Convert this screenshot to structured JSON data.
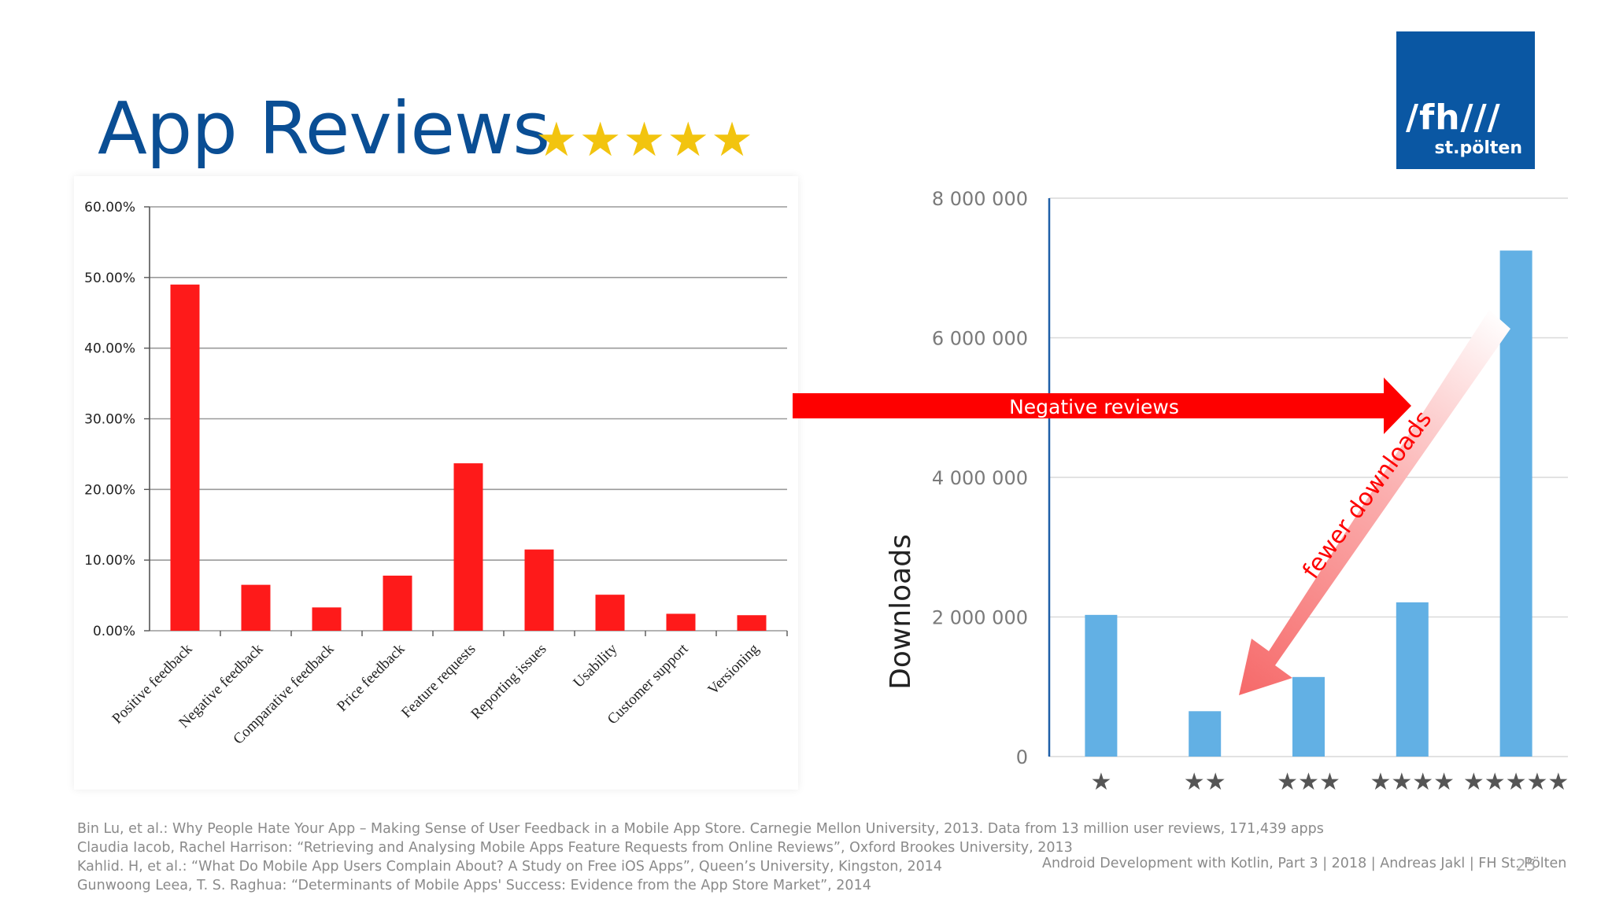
{
  "title": "App Reviews",
  "title_stars": "★★★★★",
  "logo": {
    "line1": "/fh///",
    "line2": "st.pölten"
  },
  "annotations": {
    "negative_reviews": "Negative reviews",
    "fewer_downloads": "fewer downloads"
  },
  "footer": {
    "refs": [
      "Bin Lu, et al.: Why People Hate Your App – Making Sense of User Feedback in a Mobile App Store. Carnegie Mellon University, 2013. Data from 13 million user reviews, 171,439 apps",
      "Claudia Iacob, Rachel Harrison: “Retrieving and Analysing Mobile Apps Feature Requests from Online Reviews”, Oxford Brookes University, 2013",
      "Kahlid. H, et al.: “What Do Mobile App Users Complain About? A Study on Free iOS Apps”, Queen’s University, Kingston, 2014",
      "Gunwoong Leea, T. S. Raghua: “Determinants of Mobile Apps' Success: Evidence from the App Store Market”, 2014"
    ],
    "right": "Android Development with Kotlin, Part 3 | 2018 | Andreas Jakl | FH St. Pölten",
    "page": "25"
  },
  "colors": {
    "title": "#0a4e94",
    "stars": "#f2c40f",
    "logo_bg": "#0a57a3",
    "left_bar": "#fe1a1a",
    "right_bar": "#62b0e4",
    "arrow_red": "#fe0000"
  },
  "chart_data": [
    {
      "type": "bar",
      "categories": [
        "Positive feedback",
        "Negative feedback",
        "Comparative feedback",
        "Price feedback",
        "Feature requests",
        "Reporting issues",
        "Usability",
        "Customer support",
        "Versioning"
      ],
      "values": [
        49.0,
        6.5,
        3.3,
        7.8,
        23.7,
        11.5,
        5.1,
        2.4,
        2.2
      ],
      "ylim": [
        0,
        60
      ],
      "yticks": [
        "0.00%",
        "10.00%",
        "20.00%",
        "30.00%",
        "40.00%",
        "50.00%",
        "60.00%"
      ],
      "grid": true,
      "xlabel": "",
      "ylabel": ""
    },
    {
      "type": "bar",
      "categories": [
        "★",
        "★★",
        "★★★",
        "★★★★",
        "★★★★★"
      ],
      "values": [
        2030000,
        650000,
        1140000,
        2210000,
        7250000
      ],
      "ylim": [
        0,
        8000000
      ],
      "yticks": [
        "0",
        "2 000 000",
        "4 000 000",
        "6 000 000",
        "8 000 000"
      ],
      "ylabel": "Downloads",
      "grid": true
    }
  ]
}
